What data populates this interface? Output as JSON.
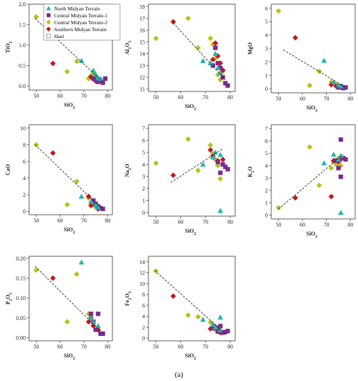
{
  "caption": "(a)",
  "legend": [
    {
      "name": "North Midyan Terrain",
      "shape": "triangle",
      "color": "#22b3b0"
    },
    {
      "name": "Central Midyan Terrain-1",
      "shape": "square",
      "color": "#7b2a8e"
    },
    {
      "name": "Central Midyan Terrain-2",
      "shape": "diamond",
      "color": "#b8c11d"
    },
    {
      "name": "Southern Midyan Terrain",
      "shape": "diamond",
      "color": "#c6161b"
    },
    {
      "name": "Hael",
      "shape": "square-outline",
      "color": "#9a9a9a"
    }
  ],
  "chart_data": [
    {
      "type": "scatter",
      "xlabel": "SiO₂",
      "ylabel": "TiO₂",
      "xlim": [
        47,
        82
      ],
      "ylim": [
        -0.1,
        2.0
      ],
      "xticks": [
        "50",
        "60",
        "70",
        "80"
      ],
      "yticks": [
        "0.0",
        "0.5",
        "1.0",
        "1.5",
        "2.0"
      ],
      "trend": [
        [
          49.5,
          1.65
        ],
        [
          78,
          0.1
        ]
      ],
      "series": [
        {
          "key": "north",
          "points": [
            [
              69,
              0.62
            ],
            [
              74,
              0.38
            ],
            [
              75,
              0.28
            ],
            [
              76,
              0.2
            ],
            [
              77,
              0.18
            ]
          ]
        },
        {
          "key": "c1",
          "points": [
            [
              74,
              0.18
            ],
            [
              75,
              0.15
            ],
            [
              76,
              0.1
            ],
            [
              77,
              0.12
            ],
            [
              78,
              0.08
            ],
            [
              79,
              0.18
            ]
          ]
        },
        {
          "key": "c2",
          "points": [
            [
              50,
              1.69
            ],
            [
              63,
              0.35
            ],
            [
              67,
              0.6
            ],
            [
              72,
              0.18
            ],
            [
              73,
              0.25
            ],
            [
              74,
              0.3
            ],
            [
              75,
              0.22
            ],
            [
              76,
              0.15
            ],
            [
              77,
              0.12
            ]
          ]
        },
        {
          "key": "south",
          "points": [
            [
              57,
              0.55
            ],
            [
              73,
              0.22
            ],
            [
              74,
              0.18
            ],
            [
              75,
              0.12
            ],
            [
              76,
              0.15
            ]
          ]
        }
      ]
    },
    {
      "type": "scatter",
      "xlabel": "SiO₂",
      "ylabel": "Al₂O₃",
      "xlim": [
        47,
        82
      ],
      "ylim": [
        10.8,
        18.2
      ],
      "xticks": [
        "50",
        "60",
        "70",
        "80"
      ],
      "yticks": [
        "11",
        "12",
        "13",
        "14",
        "15",
        "16",
        "17",
        "18"
      ],
      "trend": [
        [
          57,
          16.6
        ],
        [
          78,
          11.8
        ]
      ],
      "series": [
        {
          "key": "north",
          "points": [
            [
              69,
              13.4
            ],
            [
              72,
              13.2
            ],
            [
              74,
              14.0
            ],
            [
              75,
              12.8
            ],
            [
              76,
              12.4
            ]
          ]
        },
        {
          "key": "c1",
          "points": [
            [
              73,
              13.0
            ],
            [
              74,
              14.5
            ],
            [
              75,
              13.2
            ],
            [
              76,
              12.8
            ],
            [
              77,
              12.0
            ],
            [
              78,
              11.5
            ],
            [
              79,
              11.3
            ]
          ]
        },
        {
          "key": "c2",
          "points": [
            [
              50,
              15.3
            ],
            [
              63,
              17.0
            ],
            [
              67,
              14.5
            ],
            [
              72,
              15.3
            ],
            [
              73,
              14.8
            ],
            [
              74,
              13.6
            ],
            [
              75,
              12.2
            ],
            [
              76,
              11.8
            ],
            [
              77,
              12.5
            ]
          ]
        },
        {
          "key": "south",
          "points": [
            [
              57,
              16.7
            ],
            [
              73,
              13.5
            ],
            [
              74,
              14.9
            ],
            [
              75,
              13.8
            ],
            [
              76,
              13.2
            ],
            [
              77,
              12.6
            ]
          ]
        }
      ]
    },
    {
      "type": "scatter",
      "xlabel": "SiO₂",
      "ylabel": "MgO",
      "xlim": [
        47,
        82
      ],
      "ylim": [
        -0.3,
        6.3
      ],
      "xticks": [
        "50",
        "60",
        "70",
        "80"
      ],
      "yticks": [
        "0",
        "1",
        "2",
        "3",
        "4",
        "5",
        "6"
      ],
      "trend": [
        [
          52,
          2.9
        ],
        [
          78,
          0.1
        ]
      ],
      "series": [
        {
          "key": "north",
          "points": [
            [
              69,
              2.1
            ],
            [
              73,
              0.5
            ],
            [
              75,
              0.3
            ],
            [
              76,
              0.2
            ]
          ]
        },
        {
          "key": "c1",
          "points": [
            [
              75,
              0.1
            ],
            [
              76,
              0.2
            ],
            [
              77,
              0.05
            ],
            [
              78,
              0.1
            ]
          ]
        },
        {
          "key": "c2",
          "points": [
            [
              50,
              5.8
            ],
            [
              63,
              0.25
            ],
            [
              67,
              1.3
            ],
            [
              72,
              0.5
            ],
            [
              74,
              0.3
            ],
            [
              75,
              0.15
            ],
            [
              77,
              0.1
            ]
          ]
        },
        {
          "key": "south",
          "points": [
            [
              57,
              3.8
            ],
            [
              72,
              0.3
            ],
            [
              74,
              0.2
            ],
            [
              76,
              0.15
            ]
          ]
        }
      ]
    },
    {
      "type": "scatter",
      "xlabel": "SiO₂",
      "ylabel": "CaO",
      "xlim": [
        47,
        82
      ],
      "ylim": [
        -0.4,
        10.4
      ],
      "xticks": [
        "50",
        "60",
        "70",
        "80"
      ],
      "yticks": [
        "0",
        "2",
        "4",
        "6",
        "8",
        "10"
      ],
      "trend": [
        [
          49.5,
          8.0
        ],
        [
          78,
          0.2
        ]
      ],
      "series": [
        {
          "key": "north",
          "points": [
            [
              69,
              1.8
            ],
            [
              73,
              1.2
            ],
            [
              75,
              0.8
            ],
            [
              76,
              0.5
            ]
          ]
        },
        {
          "key": "c1",
          "points": [
            [
              74,
              1.3
            ],
            [
              75,
              0.9
            ],
            [
              76,
              0.6
            ],
            [
              77,
              0.4
            ],
            [
              78,
              0.3
            ]
          ]
        },
        {
          "key": "c2",
          "points": [
            [
              50,
              8.0
            ],
            [
              63,
              0.8
            ],
            [
              67,
              3.6
            ],
            [
              72,
              1.6
            ],
            [
              73,
              1.0
            ],
            [
              74,
              0.9
            ],
            [
              75,
              0.5
            ],
            [
              76,
              0.4
            ]
          ]
        },
        {
          "key": "south",
          "points": [
            [
              57,
              7.0
            ],
            [
              72,
              1.8
            ],
            [
              73,
              0.7
            ],
            [
              75,
              0.8
            ],
            [
              76,
              0.3
            ]
          ]
        }
      ]
    },
    {
      "type": "scatter",
      "xlabel": "SiO₂",
      "ylabel": "Na₂O",
      "xlim": [
        47,
        82
      ],
      "ylim": [
        -0.3,
        7.3
      ],
      "xticks": [
        "50",
        "60",
        "70",
        "80"
      ],
      "yticks": [
        "0",
        "1",
        "2",
        "3",
        "4",
        "5",
        "6",
        "7"
      ],
      "trend": [
        [
          56,
          2.5
        ],
        [
          77,
          5.3
        ]
      ],
      "series": [
        {
          "key": "north",
          "points": [
            [
              69,
              4.0
            ],
            [
              73,
              4.6
            ],
            [
              74,
              5.0
            ],
            [
              76,
              4.8
            ],
            [
              76,
              0.15
            ]
          ]
        },
        {
          "key": "c1",
          "points": [
            [
              75,
              4.2
            ],
            [
              76,
              3.3
            ],
            [
              77,
              4.0
            ],
            [
              78,
              3.8
            ],
            [
              79,
              3.6
            ]
          ]
        },
        {
          "key": "c2",
          "points": [
            [
              50,
              4.1
            ],
            [
              63,
              6.1
            ],
            [
              67,
              3.5
            ],
            [
              72,
              5.6
            ],
            [
              73,
              4.9
            ],
            [
              74,
              4.4
            ],
            [
              75,
              3.9
            ],
            [
              76,
              2.8
            ]
          ]
        },
        {
          "key": "south",
          "points": [
            [
              57,
              3.1
            ],
            [
              72,
              5.2
            ],
            [
              73,
              4.7
            ],
            [
              75,
              4.3
            ],
            [
              77,
              4.4
            ]
          ]
        }
      ]
    },
    {
      "type": "scatter",
      "xlabel": "SiO₂",
      "ylabel": "K₂O",
      "xlim": [
        47,
        82
      ],
      "ylim": [
        -0.3,
        7.3
      ],
      "xticks": [
        "50",
        "60",
        "70",
        "80"
      ],
      "yticks": [
        "0",
        "1",
        "2",
        "3",
        "4",
        "5",
        "6",
        "7"
      ],
      "trend": [
        [
          50,
          0.5
        ],
        [
          77,
          4.9
        ]
      ],
      "series": [
        {
          "key": "north",
          "points": [
            [
              69,
              4.2
            ],
            [
              73,
              4.9
            ],
            [
              75,
              4.5
            ],
            [
              76,
              4.8
            ],
            [
              76,
              0.2
            ]
          ]
        },
        {
          "key": "c1",
          "points": [
            [
              74,
              4.4
            ],
            [
              75,
              3.8
            ],
            [
              76,
              6.1
            ],
            [
              76,
              3.1
            ],
            [
              77,
              4.6
            ],
            [
              78,
              4.5
            ]
          ]
        },
        {
          "key": "c2",
          "points": [
            [
              50,
              0.6
            ],
            [
              63,
              5.5
            ],
            [
              67,
              2.4
            ],
            [
              72,
              3.8
            ],
            [
              73,
              4.3
            ],
            [
              74,
              4.1
            ],
            [
              75,
              4.6
            ],
            [
              76,
              4.0
            ]
          ]
        },
        {
          "key": "south",
          "points": [
            [
              57,
              1.4
            ],
            [
              72,
              1.5
            ],
            [
              73,
              4.4
            ],
            [
              75,
              4.3
            ],
            [
              76,
              4.5
            ]
          ]
        }
      ]
    },
    {
      "type": "scatter",
      "xlabel": "SiO₂",
      "ylabel": "P₂O₅",
      "xlim": [
        47,
        82
      ],
      "ylim": [
        -0.008,
        0.205
      ],
      "xticks": [
        "50",
        "60",
        "70",
        "80"
      ],
      "yticks": [
        "0.00",
        "0.05",
        "0.10",
        "0.15",
        "0.20"
      ],
      "trend": [
        [
          49.5,
          0.18
        ],
        [
          78,
          0.01
        ]
      ],
      "series": [
        {
          "key": "north",
          "points": [
            [
              69,
              0.19
            ],
            [
              73,
              0.05
            ],
            [
              74,
              0.04
            ],
            [
              76,
              0.03
            ]
          ]
        },
        {
          "key": "c1",
          "points": [
            [
              73,
              0.06
            ],
            [
              74,
              0.04
            ],
            [
              75,
              0.02
            ],
            [
              76,
              0.06
            ],
            [
              77,
              0.01
            ],
            [
              78,
              0.01
            ]
          ]
        },
        {
          "key": "c2",
          "points": [
            [
              50,
              0.17
            ],
            [
              63,
              0.04
            ],
            [
              67,
              0.16
            ],
            [
              72,
              0.06
            ],
            [
              73,
              0.05
            ],
            [
              74,
              0.03
            ],
            [
              75,
              0.02
            ],
            [
              76,
              0.02
            ]
          ]
        },
        {
          "key": "south",
          "points": [
            [
              57,
              0.15
            ],
            [
              72,
              0.04
            ],
            [
              73,
              0.05
            ],
            [
              74,
              0.03
            ],
            [
              76,
              0.02
            ]
          ]
        }
      ]
    },
    {
      "type": "scatter",
      "xlabel": "SiO₂",
      "ylabel": "Fe₂O₃",
      "xlim": [
        47,
        82
      ],
      "ylim": [
        -0.5,
        15.0
      ],
      "xticks": [
        "50",
        "60",
        "70",
        "80"
      ],
      "yticks": [
        "0",
        "2",
        "4",
        "6",
        "8",
        "10",
        "12",
        "14"
      ],
      "trend": [
        [
          49.5,
          12.4
        ],
        [
          78,
          0.8
        ]
      ],
      "series": [
        {
          "key": "north",
          "points": [
            [
              69,
              3.4
            ],
            [
              73,
              2.5
            ],
            [
              74,
              2.0
            ],
            [
              76,
              3.8
            ],
            [
              76,
              1.5
            ]
          ]
        },
        {
          "key": "c1",
          "points": [
            [
              73,
              1.8
            ],
            [
              75,
              1.2
            ],
            [
              76,
              2.2
            ],
            [
              77,
              1.0
            ],
            [
              78,
              1.1
            ],
            [
              79,
              1.3
            ]
          ]
        },
        {
          "key": "c2",
          "points": [
            [
              50,
              12.3
            ],
            [
              63,
              4.2
            ],
            [
              67,
              3.9
            ],
            [
              72,
              2.9
            ],
            [
              73,
              2.2
            ],
            [
              74,
              1.5
            ],
            [
              75,
              1.8
            ],
            [
              76,
              1.2
            ]
          ]
        },
        {
          "key": "south",
          "points": [
            [
              57,
              7.7
            ],
            [
              72,
              1.7
            ],
            [
              74,
              2.1
            ],
            [
              75,
              1.5
            ],
            [
              76,
              1.0
            ]
          ]
        }
      ]
    }
  ]
}
